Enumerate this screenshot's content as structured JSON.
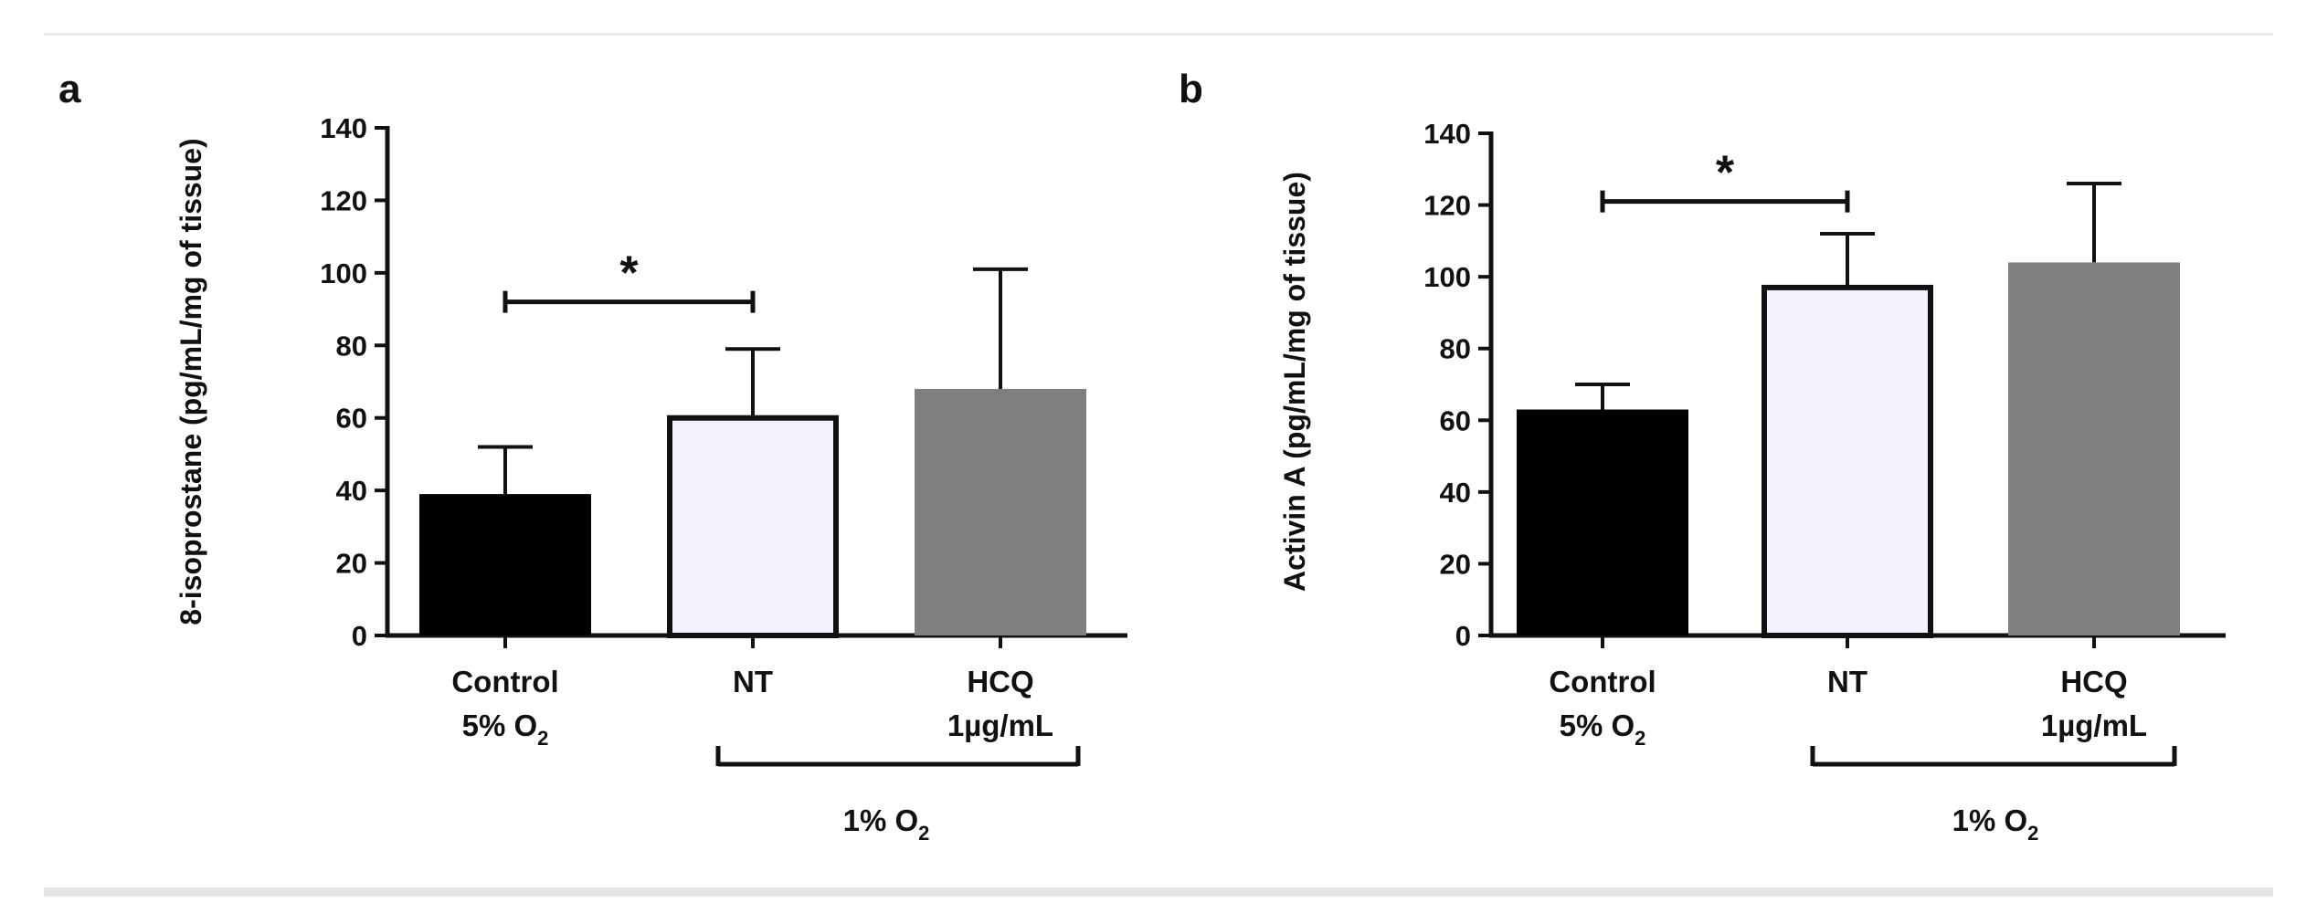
{
  "chart_data": [
    {
      "panel": "a",
      "type": "bar",
      "ylabel": "8-isoprostane (pg/mL/mg of tissue)",
      "ylim": [
        0,
        140
      ],
      "yticks": [
        0,
        20,
        40,
        60,
        80,
        100,
        120,
        140
      ],
      "bars": [
        {
          "category": "Control",
          "subline": "5% O",
          "subline_sub": "2",
          "value": 39,
          "error": 13,
          "color": "#000000"
        },
        {
          "category": "NT",
          "subline": "",
          "subline_sub": "",
          "value": 60,
          "error": 19,
          "color": "#f3f2fc"
        },
        {
          "category": "HCQ",
          "subline": "1µg/mL",
          "subline_sub": "",
          "value": 68,
          "error": 33,
          "color": "#7f7f7f"
        }
      ],
      "group_label": "1% O",
      "group_label_sub": "2",
      "significance": {
        "from": 0,
        "to": 1,
        "label": "*",
        "y": 92
      }
    },
    {
      "panel": "b",
      "type": "bar",
      "ylabel": "Activin A (pg/mL/mg of tissue)",
      "ylim": [
        0,
        140
      ],
      "yticks": [
        0,
        20,
        40,
        60,
        80,
        100,
        120,
        140
      ],
      "bars": [
        {
          "category": "Control",
          "subline": "5% O",
          "subline_sub": "2",
          "value": 63,
          "error": 7,
          "color": "#000000"
        },
        {
          "category": "NT",
          "subline": "",
          "subline_sub": "",
          "value": 97,
          "error": 15,
          "color": "#f3f2fc"
        },
        {
          "category": "HCQ",
          "subline": "1µg/mL",
          "subline_sub": "",
          "value": 104,
          "error": 22,
          "color": "#7f7f7f"
        }
      ],
      "group_label": "1% O",
      "group_label_sub": "2",
      "significance": {
        "from": 0,
        "to": 1,
        "label": "*",
        "y": 121
      }
    }
  ]
}
